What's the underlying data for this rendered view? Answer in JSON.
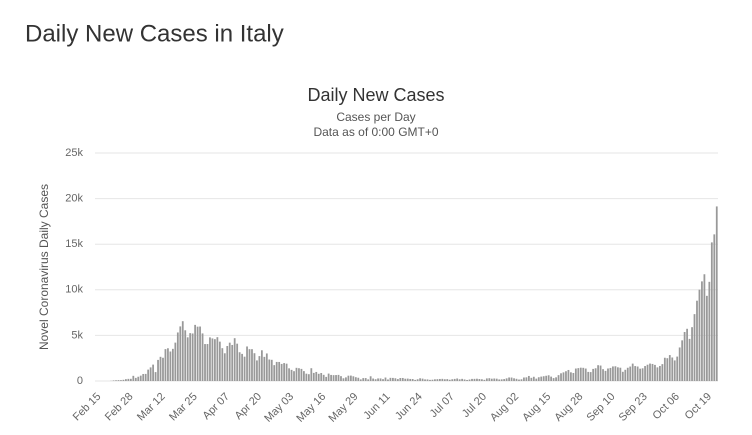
{
  "page_title": "Daily New Cases in Italy",
  "chart_data": {
    "type": "bar",
    "title": "Daily New Cases",
    "subtitle": [
      "Cases per Day",
      "Data as of 0:00 GMT+0"
    ],
    "y_label": "Novel Coronavirus Daily Cases",
    "color": "#999999",
    "grid": true,
    "ylim": [
      0,
      25000
    ],
    "yticks": [
      0,
      {
        "value": 5000,
        "label": "5k"
      },
      {
        "value": 10000,
        "label": "10k"
      },
      {
        "value": 15000,
        "label": "15k"
      },
      {
        "value": 20000,
        "label": "20k"
      },
      {
        "value": 25000,
        "label": "25k"
      }
    ],
    "categories": [
      "Feb 15",
      null,
      null,
      null,
      null,
      null,
      null,
      null,
      null,
      null,
      null,
      null,
      null,
      "Feb 28",
      null,
      null,
      null,
      null,
      null,
      null,
      null,
      null,
      null,
      null,
      null,
      null,
      "Mar 12",
      null,
      null,
      null,
      null,
      null,
      null,
      null,
      null,
      null,
      null,
      null,
      null,
      "Mar 25",
      null,
      null,
      null,
      null,
      null,
      null,
      null,
      null,
      null,
      null,
      null,
      null,
      "Apr 07",
      null,
      null,
      null,
      null,
      null,
      null,
      null,
      null,
      null,
      null,
      null,
      null,
      "Apr 20",
      null,
      null,
      null,
      null,
      null,
      null,
      null,
      null,
      null,
      null,
      null,
      null,
      "May 03",
      null,
      null,
      null,
      null,
      null,
      null,
      null,
      null,
      null,
      null,
      null,
      null,
      "May 16",
      null,
      null,
      null,
      null,
      null,
      null,
      null,
      null,
      null,
      null,
      null,
      null,
      "May 29",
      null,
      null,
      null,
      null,
      null,
      null,
      null,
      null,
      null,
      null,
      null,
      null,
      "Jun 11",
      null,
      null,
      null,
      null,
      null,
      null,
      null,
      null,
      null,
      null,
      null,
      null,
      "Jun 24",
      null,
      null,
      null,
      null,
      null,
      null,
      null,
      null,
      null,
      null,
      null,
      null,
      "Jul 07",
      null,
      null,
      null,
      null,
      null,
      null,
      null,
      null,
      null,
      null,
      null,
      null,
      "Jul 20",
      null,
      null,
      null,
      null,
      null,
      null,
      null,
      null,
      null,
      null,
      null,
      null,
      "Aug 02",
      null,
      null,
      null,
      null,
      null,
      null,
      null,
      null,
      null,
      null,
      null,
      null,
      "Aug 15",
      null,
      null,
      null,
      null,
      null,
      null,
      null,
      null,
      null,
      null,
      null,
      null,
      "Aug 28",
      null,
      null,
      null,
      null,
      null,
      null,
      null,
      null,
      null,
      null,
      null,
      null,
      "Sep 10",
      null,
      null,
      null,
      null,
      null,
      null,
      null,
      null,
      null,
      null,
      null,
      null,
      "Sep 23",
      null,
      null,
      null,
      null,
      null,
      null,
      null,
      null,
      null,
      null,
      null,
      null,
      "Oct 06",
      null,
      null,
      null,
      null,
      null,
      null,
      null,
      null,
      null,
      null,
      null,
      null,
      "Oct 19",
      null,
      null,
      null,
      null
    ],
    "values": [
      0,
      0,
      0,
      0,
      0,
      0,
      17,
      62,
      77,
      93,
      93,
      131,
      202,
      233,
      240,
      566,
      342,
      466,
      587,
      769,
      778,
      1247,
      1492,
      1797,
      977,
      2313,
      2651,
      2547,
      3497,
      3590,
      3233,
      3526,
      4207,
      5322,
      5986,
      6557,
      5560,
      4789,
      5249,
      5210,
      6153,
      5959,
      5974,
      5217,
      4050,
      4053,
      4782,
      4668,
      4585,
      4805,
      4316,
      3599,
      3039,
      3836,
      4204,
      3951,
      4694,
      4092,
      3153,
      2972,
      2667,
      3786,
      3493,
      3491,
      3047,
      2256,
      2729,
      3370,
      2646,
      3021,
      2357,
      2324,
      1739,
      2091,
      2086,
      1872,
      1965,
      1900,
      1389,
      1221,
      1075,
      1444,
      1401,
      1327,
      1083,
      802,
      744,
      1402,
      888,
      992,
      789,
      875,
      675,
      451,
      813,
      665,
      642,
      652,
      669,
      531,
      300,
      397,
      584,
      593,
      516,
      416,
      355,
      178,
      318,
      321,
      177,
      518,
      270,
      197,
      280,
      283,
      202,
      379,
      163,
      346,
      338,
      301,
      210,
      328,
      331,
      251,
      262,
      224,
      218,
      122,
      190,
      296,
      259,
      175,
      174,
      126,
      142,
      187,
      201,
      223,
      235,
      192,
      208,
      138,
      193,
      229,
      276,
      188,
      234,
      169,
      114,
      162,
      230,
      233,
      249,
      218,
      190,
      129,
      282,
      306,
      252,
      275,
      255,
      170,
      181,
      212,
      289,
      386,
      379,
      295,
      239,
      159,
      190,
      384,
      402,
      552,
      347,
      463,
      259,
      412,
      481,
      523,
      574,
      629,
      479,
      320,
      403,
      642,
      845,
      947,
      1071,
      1210,
      953,
      878,
      1367,
      1411,
      1460,
      1444,
      1365,
      996,
      978,
      1326,
      1397,
      1733,
      1695,
      1297,
      1108,
      1370,
      1434,
      1597,
      1616,
      1501,
      1456,
      1008,
      1229,
      1452,
      1585,
      1907,
      1638,
      1587,
      1350,
      1392,
      1640,
      1786,
      1912,
      1869,
      1766,
      1494,
      1648,
      1851,
      2548,
      2499,
      2844,
      2578,
      2257,
      2677,
      3678,
      4458,
      5372,
      5724,
      4619,
      5901,
      7332,
      8804,
      10010,
      10925,
      11705,
      9338,
      10874,
      15199,
      16079,
      19143
    ]
  }
}
